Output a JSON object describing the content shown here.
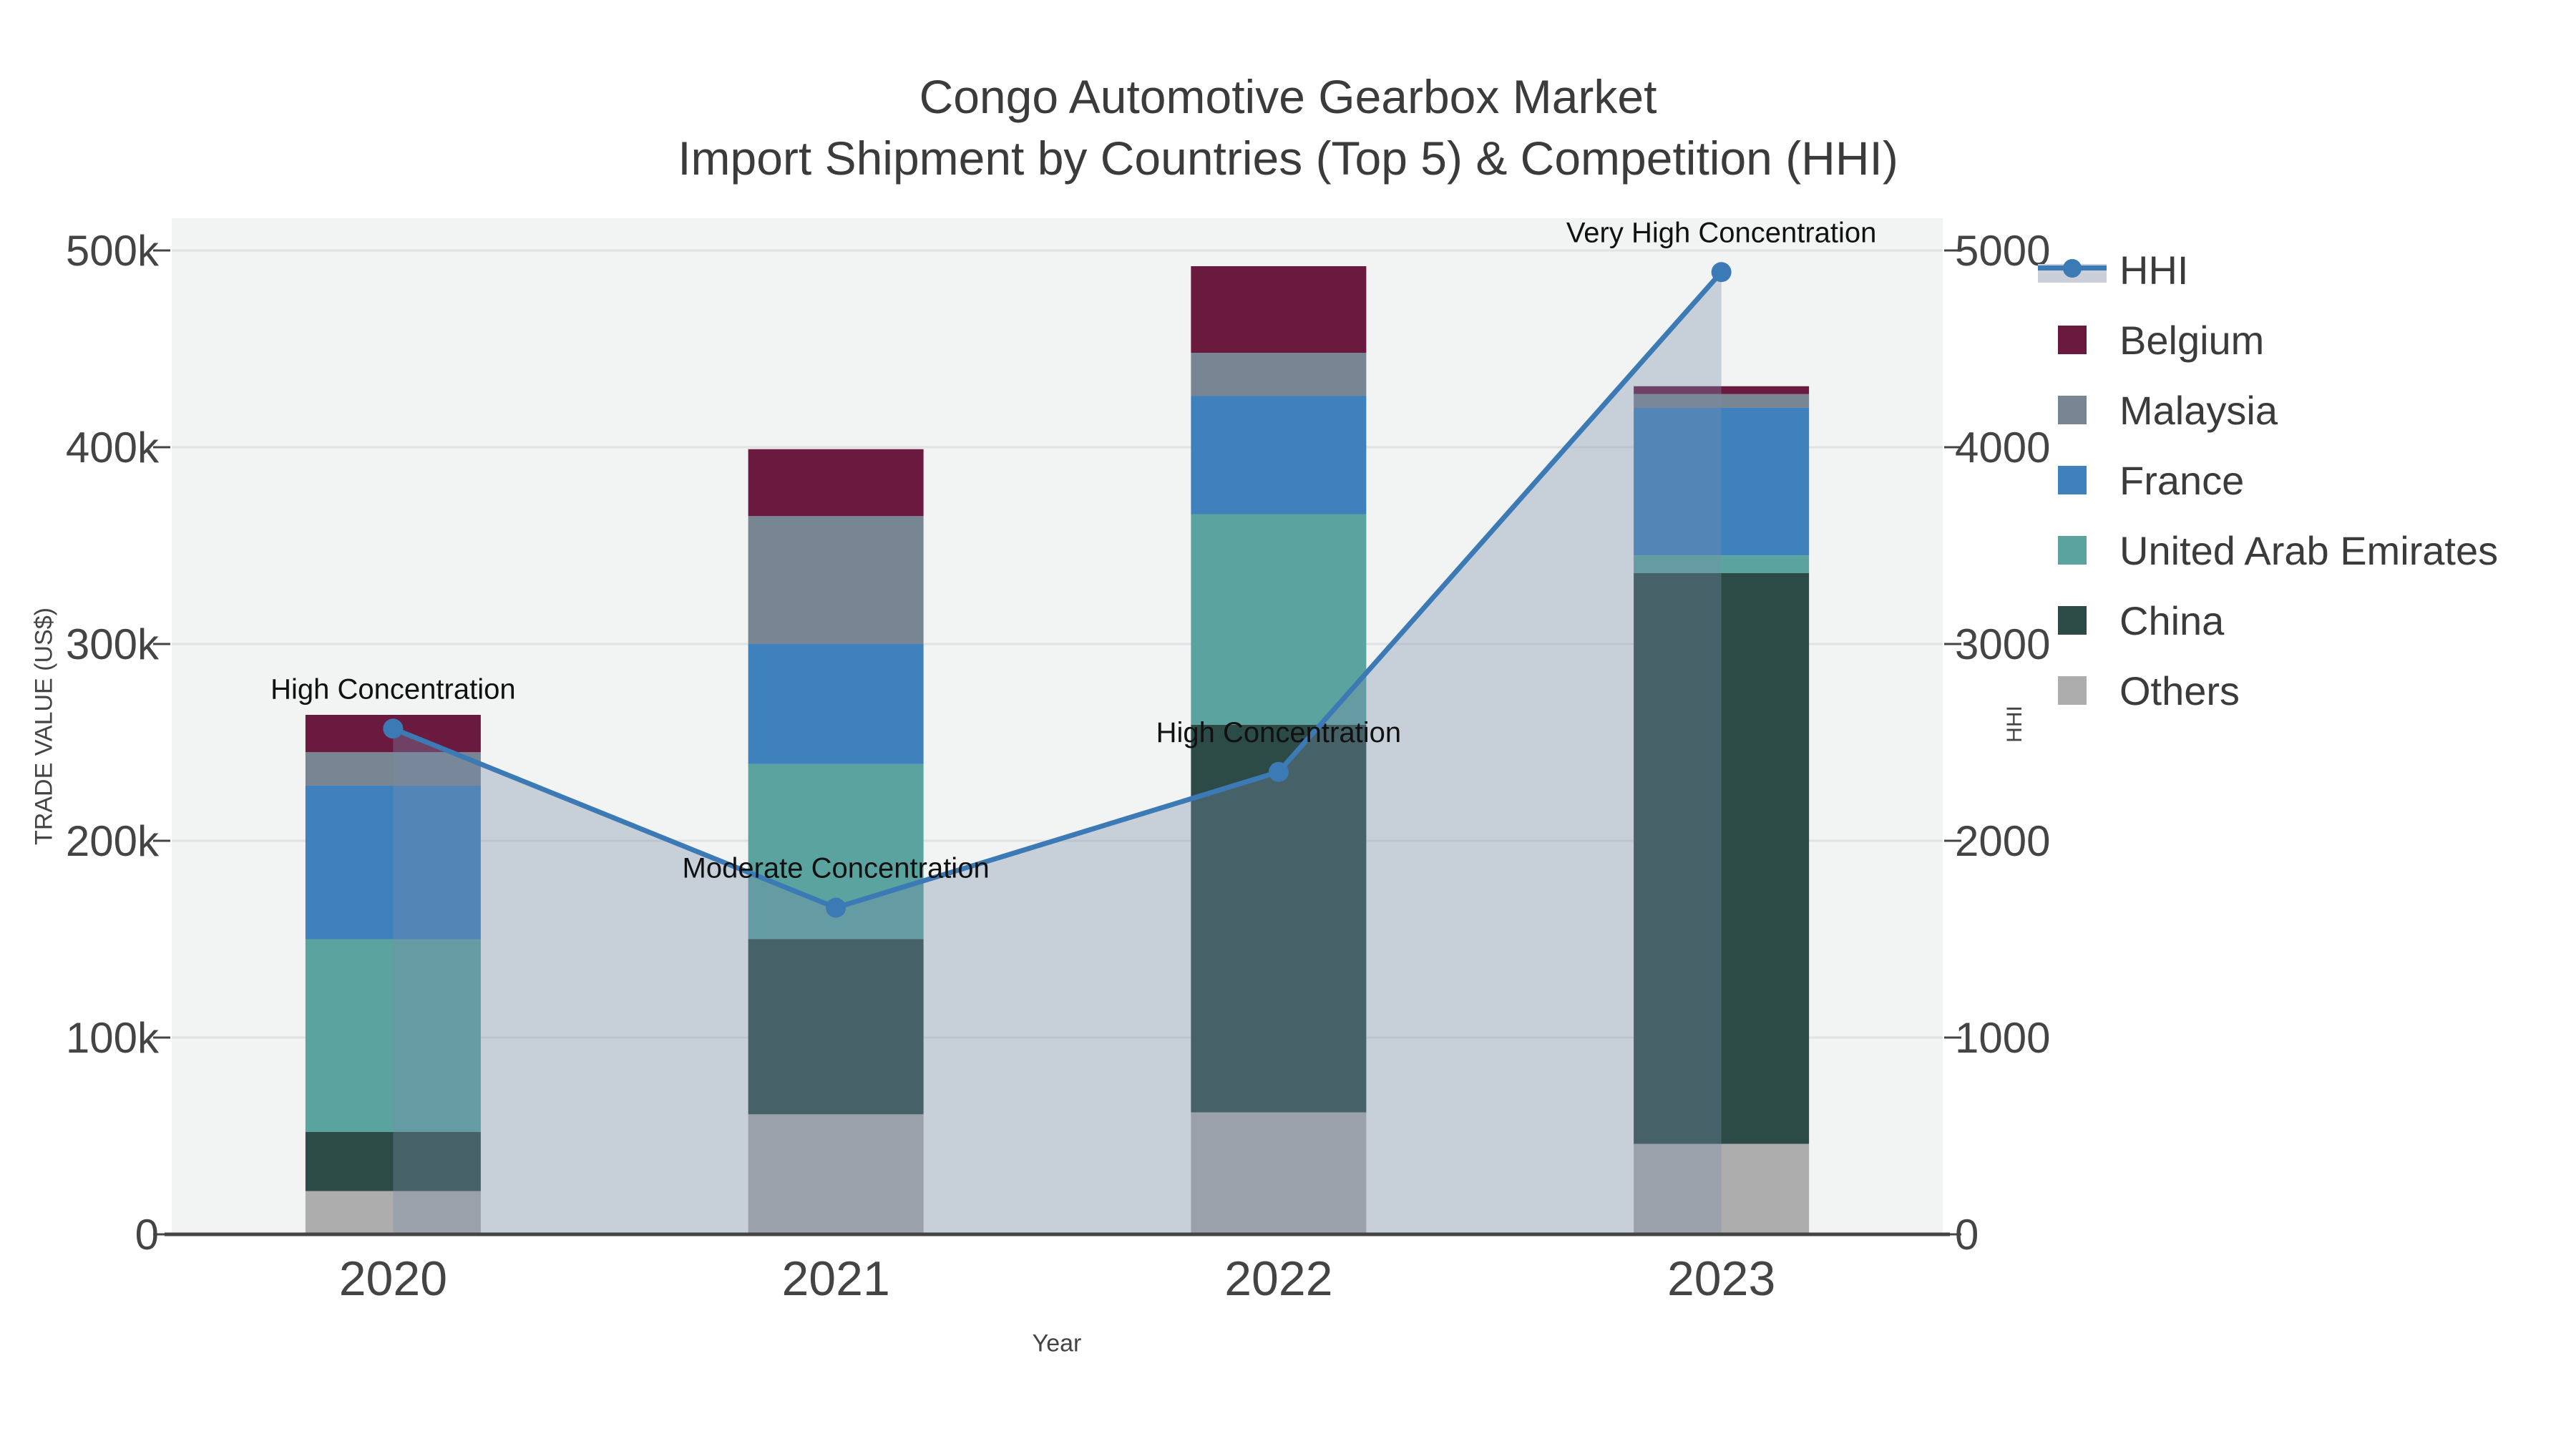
{
  "title": {
    "line1": "Congo Automotive Gearbox Market",
    "line2": "Import Shipment by Countries (Top 5) & Competition (HHI)"
  },
  "axes": {
    "y_left": {
      "title": "TRADE VALUE (US$)",
      "ticks": [
        "0",
        "100k",
        "200k",
        "300k",
        "400k",
        "500k"
      ],
      "range": [
        0,
        500000
      ]
    },
    "y_right": {
      "title": "HHI",
      "ticks": [
        "0",
        "1000",
        "2000",
        "3000",
        "4000",
        "5000"
      ],
      "range": [
        0,
        5000
      ]
    },
    "x": {
      "title": "Year",
      "ticks": [
        "2020",
        "2021",
        "2022",
        "2023"
      ]
    }
  },
  "legend": {
    "items": [
      {
        "label": "HHI",
        "type": "line",
        "color": "#3c7ab5",
        "fill": "#c9ced9"
      },
      {
        "label": "Belgium",
        "type": "square",
        "color": "#6b1a3f"
      },
      {
        "label": "Malaysia",
        "type": "square",
        "color": "#788592"
      },
      {
        "label": "France",
        "type": "square",
        "color": "#3f81bd"
      },
      {
        "label": "United Arab Emirates",
        "type": "square",
        "color": "#5ba39e"
      },
      {
        "label": "China",
        "type": "square",
        "color": "#2c4b46"
      },
      {
        "label": "Others",
        "type": "square",
        "color": "#adadad"
      }
    ]
  },
  "chart_data": {
    "type": "bar+line",
    "title": "Congo Automotive Gearbox Market — Import Shipment by Countries (Top 5) & Competition (HHI)",
    "xlabel": "Year",
    "ylabel_left": "TRADE VALUE (US$)",
    "ylabel_right": "HHI",
    "ylim_left": [
      0,
      500000
    ],
    "ylim_right": [
      0,
      5000
    ],
    "grid": true,
    "legend_position": "right",
    "categories": [
      "2020",
      "2021",
      "2022",
      "2023"
    ],
    "stack_order_bottom_to_top": [
      "Others",
      "China",
      "United Arab Emirates",
      "France",
      "Malaysia",
      "Belgium"
    ],
    "series": [
      {
        "name": "Others",
        "values": [
          22000,
          61000,
          62000,
          46000
        ],
        "color": "#adadad"
      },
      {
        "name": "China",
        "values": [
          30000,
          89000,
          197000,
          290000
        ],
        "color": "#2c4b46"
      },
      {
        "name": "United Arab Emirates",
        "values": [
          98000,
          89000,
          107000,
          9000
        ],
        "color": "#5ba39e"
      },
      {
        "name": "France",
        "values": [
          78000,
          61000,
          60000,
          75000
        ],
        "color": "#3f81bd"
      },
      {
        "name": "Malaysia",
        "values": [
          17000,
          65000,
          22000,
          7000
        ],
        "color": "#788592"
      },
      {
        "name": "Belgium",
        "values": [
          19000,
          34000,
          44000,
          4000
        ],
        "color": "#6b1a3f"
      }
    ],
    "bar_totals": [
      264000,
      399000,
      492000,
      431000
    ],
    "line": {
      "name": "HHI",
      "axis": "right",
      "values": [
        2570,
        1660,
        2350,
        4890
      ],
      "color": "#3c7ab5",
      "fill": "rgba(120,140,170,0.35)",
      "marker": "circle"
    },
    "annotations": [
      {
        "x": "2020",
        "text": "High Concentration"
      },
      {
        "x": "2021",
        "text": "Moderate Concentration"
      },
      {
        "x": "2022",
        "text": "High Concentration"
      },
      {
        "x": "2023",
        "text": "Very High Concentration"
      }
    ],
    "style": {
      "plot_bg": "#f2f3f3",
      "gridline": "#e0e2e4",
      "axis_line": "#444444",
      "tick_text": "#444444",
      "title_text": "#3b3b3b",
      "annotation_text": "#111111"
    }
  }
}
